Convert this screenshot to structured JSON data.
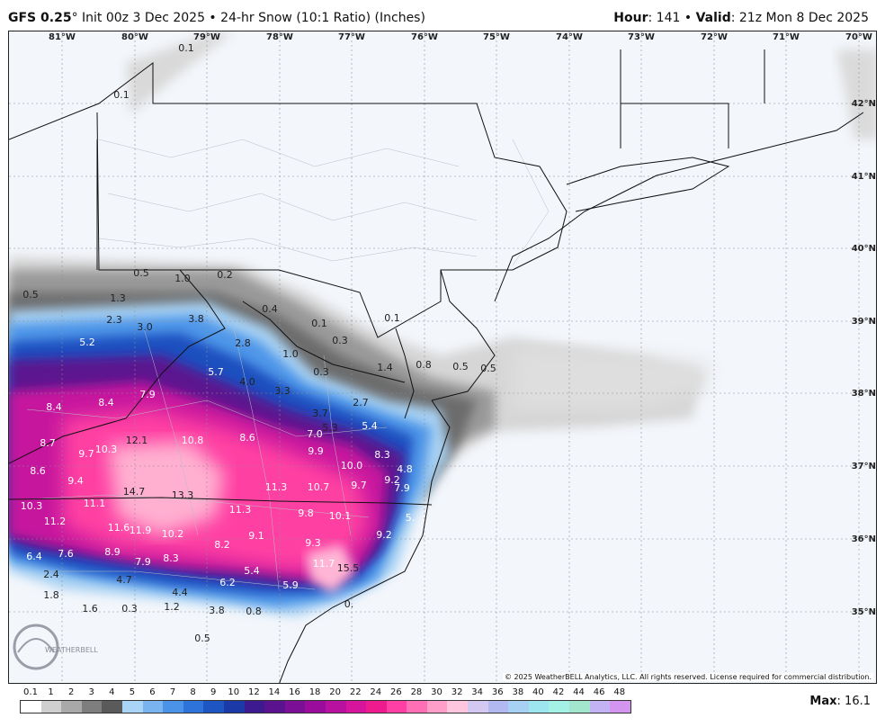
{
  "header": {
    "model": "GFS 0.25",
    "degree": "°",
    "init": " Init 00z 3 Dec 2025",
    "bullet": " • ",
    "product": "24-hr Snow (10:1 Ratio) (Inches)",
    "hour_label": "Hour",
    "hour_value": ": 141",
    "valid_label": "Valid",
    "valid_value": ": 21z Mon 8 Dec 2025"
  },
  "longitudes": [
    "81°W",
    "80°W",
    "79°W",
    "78°W",
    "77°W",
    "76°W",
    "75°W",
    "74°W",
    "73°W",
    "72°W",
    "71°W",
    "70°W"
  ],
  "latitudes": [
    "42°N",
    "41°N",
    "40°N",
    "39°N",
    "38°N",
    "37°N",
    "36°N",
    "35°N"
  ],
  "snow_values": [
    {
      "v": "0.1",
      "c": "#222"
    },
    {
      "v": "0.1",
      "c": "#222"
    },
    {
      "v": "0.5",
      "c": "#222"
    },
    {
      "v": "1.0",
      "c": "#222"
    },
    {
      "v": "0.2",
      "c": "#222"
    },
    {
      "v": "0.5",
      "c": "#222"
    },
    {
      "v": "1.3",
      "c": "#222"
    },
    {
      "v": "2.3",
      "c": "#222"
    },
    {
      "v": "3.0",
      "c": "#222"
    },
    {
      "v": "3.8",
      "c": "#222"
    },
    {
      "v": "0.4",
      "c": "#222"
    },
    {
      "v": "0.1",
      "c": "#222"
    },
    {
      "v": "0.3",
      "c": "#222"
    },
    {
      "v": "0.1",
      "c": "#222"
    },
    {
      "v": "5.2",
      "c": "#fff"
    },
    {
      "v": "2.8",
      "c": "#222"
    },
    {
      "v": "1.0",
      "c": "#222"
    },
    {
      "v": "0.3",
      "c": "#222"
    },
    {
      "v": "1.4",
      "c": "#222"
    },
    {
      "v": "0.8",
      "c": "#222"
    },
    {
      "v": "0.5",
      "c": "#222"
    },
    {
      "v": "0.5",
      "c": "#222"
    },
    {
      "v": "5.7",
      "c": "#fff"
    },
    {
      "v": "4.0",
      "c": "#222"
    },
    {
      "v": "3.3",
      "c": "#222"
    },
    {
      "v": "2.7",
      "c": "#222"
    },
    {
      "v": "8.4",
      "c": "#fff"
    },
    {
      "v": "8.4",
      "c": "#fff"
    },
    {
      "v": "7.9",
      "c": "#fff"
    },
    {
      "v": "3.7",
      "c": "#222"
    },
    {
      "v": "5.3",
      "c": "#222"
    },
    {
      "v": "5.4",
      "c": "#fff"
    },
    {
      "v": "7.0",
      "c": "#fff"
    },
    {
      "v": "8.7",
      "c": "#fff"
    },
    {
      "v": "9.7",
      "c": "#fff"
    },
    {
      "v": "10.3",
      "c": "#fff"
    },
    {
      "v": "12.1",
      "c": "#222"
    },
    {
      "v": "10.8",
      "c": "#fff"
    },
    {
      "v": "8.6",
      "c": "#fff"
    },
    {
      "v": "9.9",
      "c": "#fff"
    },
    {
      "v": "8.3",
      "c": "#fff"
    },
    {
      "v": "10.0",
      "c": "#fff"
    },
    {
      "v": "4.8",
      "c": "#fff"
    },
    {
      "v": "8.6",
      "c": "#fff"
    },
    {
      "v": "9.4",
      "c": "#fff"
    },
    {
      "v": "9.2",
      "c": "#fff"
    },
    {
      "v": "9.7",
      "c": "#fff"
    },
    {
      "v": "7.9",
      "c": "#fff"
    },
    {
      "v": "14.7",
      "c": "#222"
    },
    {
      "v": "13.3",
      "c": "#222"
    },
    {
      "v": "11.3",
      "c": "#fff"
    },
    {
      "v": "10.7",
      "c": "#fff"
    },
    {
      "v": "10.3",
      "c": "#fff"
    },
    {
      "v": "11.1",
      "c": "#fff"
    },
    {
      "v": "11.3",
      "c": "#fff"
    },
    {
      "v": "9.8",
      "c": "#fff"
    },
    {
      "v": "10.1",
      "c": "#fff"
    },
    {
      "v": "5.",
      "c": "#fff"
    },
    {
      "v": "11.2",
      "c": "#fff"
    },
    {
      "v": "11.6",
      "c": "#fff"
    },
    {
      "v": "11.9",
      "c": "#fff"
    },
    {
      "v": "10.2",
      "c": "#fff"
    },
    {
      "v": "9.1",
      "c": "#fff"
    },
    {
      "v": "9.2",
      "c": "#fff"
    },
    {
      "v": "6.4",
      "c": "#fff"
    },
    {
      "v": "7.6",
      "c": "#fff"
    },
    {
      "v": "8.9",
      "c": "#fff"
    },
    {
      "v": "8.2",
      "c": "#fff"
    },
    {
      "v": "9.3",
      "c": "#fff"
    },
    {
      "v": "7.9",
      "c": "#fff"
    },
    {
      "v": "8.3",
      "c": "#fff"
    },
    {
      "v": "11.7",
      "c": "#fff"
    },
    {
      "v": "15.5",
      "c": "#222"
    },
    {
      "v": "2.4",
      "c": "#222"
    },
    {
      "v": "4.7",
      "c": "#222"
    },
    {
      "v": "5.4",
      "c": "#fff"
    },
    {
      "v": "6.2",
      "c": "#fff"
    },
    {
      "v": "5.9",
      "c": "#fff"
    },
    {
      "v": "1.8",
      "c": "#222"
    },
    {
      "v": "4.4",
      "c": "#222"
    },
    {
      "v": "1.6",
      "c": "#222"
    },
    {
      "v": "0.3",
      "c": "#222"
    },
    {
      "v": "1.2",
      "c": "#222"
    },
    {
      "v": "3.8",
      "c": "#222"
    },
    {
      "v": "0.8",
      "c": "#222"
    },
    {
      "v": "0.5",
      "c": "#222"
    },
    {
      "v": "0.",
      "c": "#222"
    }
  ],
  "copyright": "© 2025 WeatherBELL Analytics, LLC. All rights reserved. License required for commercial distribution.",
  "logo_text": "WEATHERBELL",
  "colorbar": {
    "ticks": [
      "0.1",
      "1",
      "2",
      "3",
      "4",
      "5",
      "6",
      "7",
      "8",
      "9",
      "10",
      "12",
      "14",
      "16",
      "18",
      "20",
      "22",
      "24",
      "26",
      "28",
      "30",
      "32",
      "34",
      "36",
      "38",
      "40",
      "42",
      "44",
      "46",
      "48"
    ],
    "colors": [
      "#ffffff",
      "#cfcfcf",
      "#a9a9a9",
      "#7e7e7e",
      "#5a5a5a",
      "#aad4f5",
      "#7ab4f0",
      "#4a93e8",
      "#2d73d9",
      "#1d55c2",
      "#1b3aa8",
      "#3d1a8f",
      "#5b128f",
      "#7b0f96",
      "#9a0c9c",
      "#b8119f",
      "#d6149c",
      "#ee1b8f",
      "#ff3fa3",
      "#ff6fb6",
      "#ff9fc9",
      "#ffc6dd",
      "#d2c8f2",
      "#b1b9f0",
      "#a6d1f4",
      "#9de5ef",
      "#a4f1e5",
      "#a2e7cd",
      "#c3b3f4",
      "#d495f1"
    ],
    "max_label": "Max",
    "max_value": ": 16.1"
  }
}
